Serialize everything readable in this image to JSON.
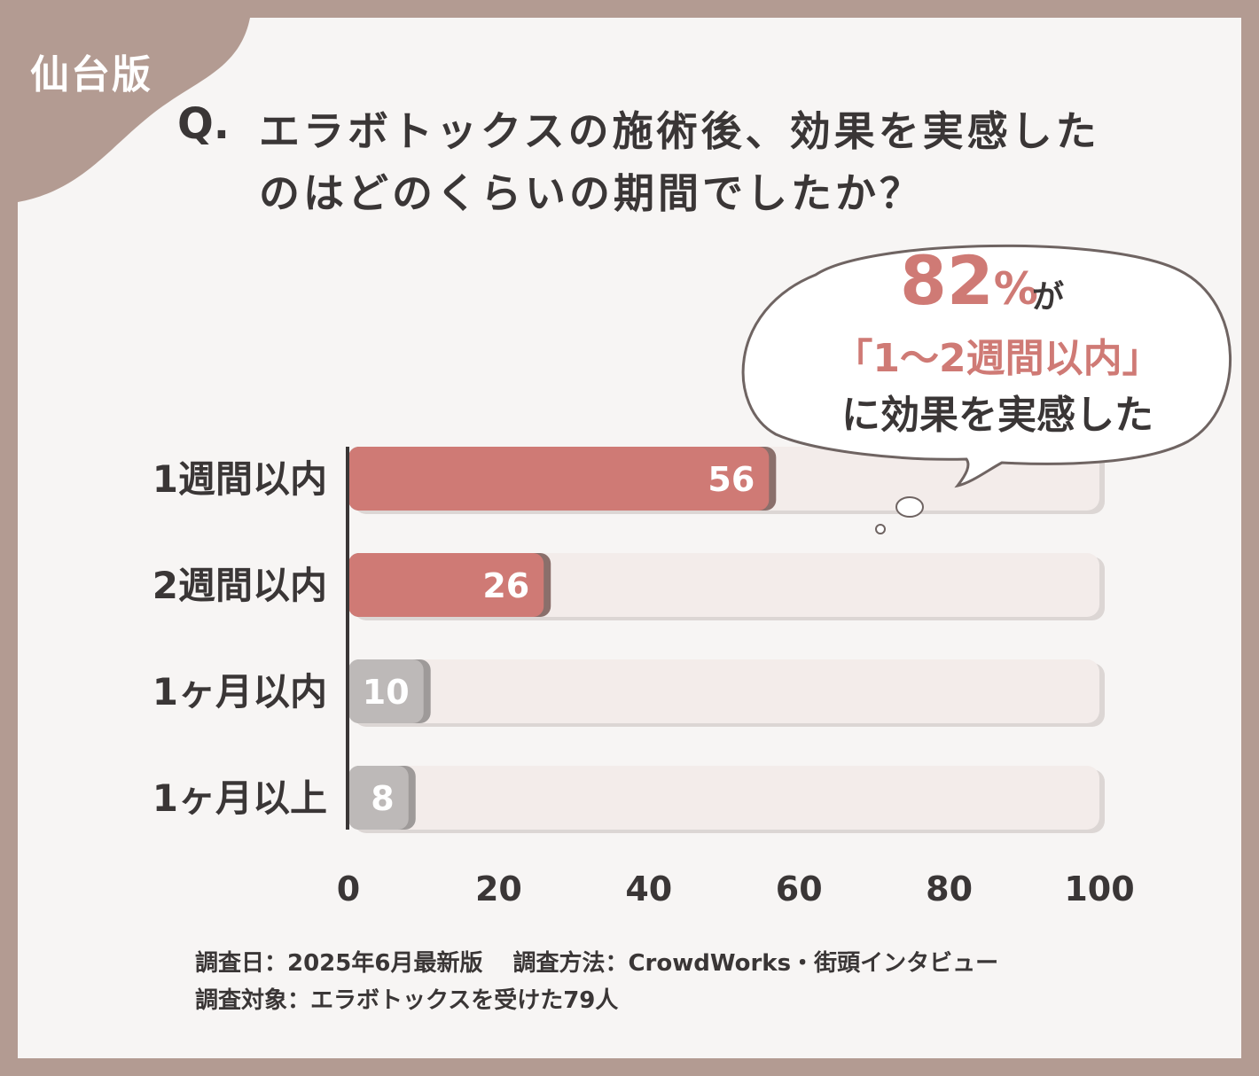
{
  "badge": "仙台版",
  "question": {
    "mark": "Q.",
    "line1": "エラボトックスの施術後、効果を実感した",
    "line2": "のはどのくらいの期間でしたか？"
  },
  "callout": {
    "percent": "82",
    "percent_symbol": "%",
    "particle": "が",
    "period": "「1〜2週間以内」",
    "text": "に効果を実感した"
  },
  "colors": {
    "frame": "#b39b92",
    "highlight_bar": "#cf7a75",
    "gray_bar": "#bdb9b8",
    "track": "#f3ecea",
    "text": "#3a3636"
  },
  "chart_data": {
    "type": "bar",
    "orientation": "horizontal",
    "categories": [
      "1週間以内",
      "2週間以内",
      "1ヶ月以内",
      "1ヶ月以上"
    ],
    "values": [
      56,
      26,
      10,
      8
    ],
    "highlighted": [
      true,
      true,
      false,
      false
    ],
    "xlim": [
      0,
      100
    ],
    "xticks": [
      "0",
      "20",
      "40",
      "60",
      "80",
      "100"
    ],
    "grid": false,
    "legend": "none"
  },
  "footer": {
    "date": "調査日：2025年6月最新版",
    "method": "調査方法：CrowdWorks・街頭インタビュー",
    "target": "調査対象：エラボトックスを受けた79人"
  }
}
